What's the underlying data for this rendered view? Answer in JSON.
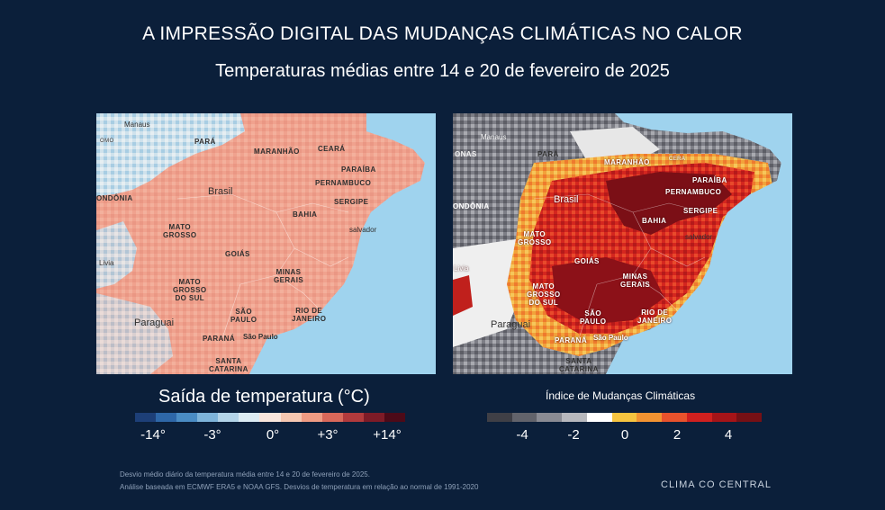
{
  "title": "A IMPRESSÃO DIGITAL DAS MUDANÇAS CLIMÁTICAS NO CALOR",
  "subtitle": "Temperaturas médias entre 14 e 20 de fevereiro de 2025",
  "left_map": {
    "labels": {
      "manaus": "Manaus",
      "amazonas": "omo",
      "para": "Pará",
      "maranhao": "Maranhão",
      "ceara": "Ceará",
      "paraiba": "Paraíba",
      "pernambuco": "Pernambuco",
      "brasil": "Brasil",
      "sergipe": "Sergipe",
      "rondonia": "ondônia",
      "bahia": "Bahia",
      "salvador": "salvador",
      "mato_grosso": "Mato\nGrosso",
      "goias": "Goiás",
      "bolivia": "Livia",
      "minas_gerais": "Minas\nGerais",
      "mato_grosso_do_sul": "Mato\nGrosso\ndo Sul",
      "sao_paulo_state": "São\nPaulo",
      "rio_de_janeiro": "Rio de\nJaneiro",
      "paraguai": "Paraguai",
      "parana": "Paraná",
      "sao_paulo_city": "São Paulo",
      "santa_catarina": "Santa\nCatarina"
    }
  },
  "right_map": {
    "labels": {
      "manaus": "Manaus",
      "amazonas": "onas",
      "para": "Pará",
      "maranhao": "Maranhão",
      "ceara": "Cera",
      "paraiba": "Paraíba",
      "pernambuco": "Pernambuco",
      "brasil": "Brasil",
      "sergipe": "Sergipe",
      "rondonia": "ondônia",
      "bahia": "Bahia",
      "salvador": "salvador",
      "mato_grosso": "Mato\nGrosso",
      "goias": "Goiás",
      "bolivia": "Livia",
      "minas_gerais": "Minas\nGerais",
      "mato_grosso_do_sul": "Mato\nGrosso\ndo Sul",
      "sao_paulo_state": "São\nPaulo",
      "rio_de_janeiro": "Rio de\nJaneiro",
      "paraguai": "Paraguai",
      "parana": "Paraná",
      "sao_paulo_city": "São Paulo",
      "santa_catarina": "Santa\nCatarina"
    }
  },
  "legend_left": {
    "title": "Saída de temperatura (°C)",
    "colors": [
      "#1d3f78",
      "#2e67a8",
      "#4a8cc4",
      "#7eb4da",
      "#b3d4e8",
      "#dcecf3",
      "#f9e6dc",
      "#f6c7b1",
      "#ef9b83",
      "#d9685a",
      "#b23a3c",
      "#7e1b27",
      "#4d0a18"
    ],
    "ticks": [
      "-14°",
      "-3°",
      "0°",
      "+3°",
      "+14°"
    ]
  },
  "legend_right": {
    "title": "Índice de Mudanças Climáticas",
    "colors": [
      "#3f3f46",
      "#62636b",
      "#8a8b93",
      "#b7b8bd",
      "#ffffff",
      "#f6c43f",
      "#f29331",
      "#e8522c",
      "#d0201f",
      "#a51418",
      "#761015"
    ],
    "ticks": [
      "-4",
      "-2",
      "0",
      "2",
      "4"
    ]
  },
  "footnotes": {
    "line1": "Desvio médio diário da temperatura média entre 14 e 20 de fevereiro de 2025.",
    "line2": "Análise baseada em ECMWF ERA5 e NOAA GFS. Desvios de temperatura em relação ao normal de 1991-2020"
  },
  "brand": "CLIMA CO CENTRAL"
}
